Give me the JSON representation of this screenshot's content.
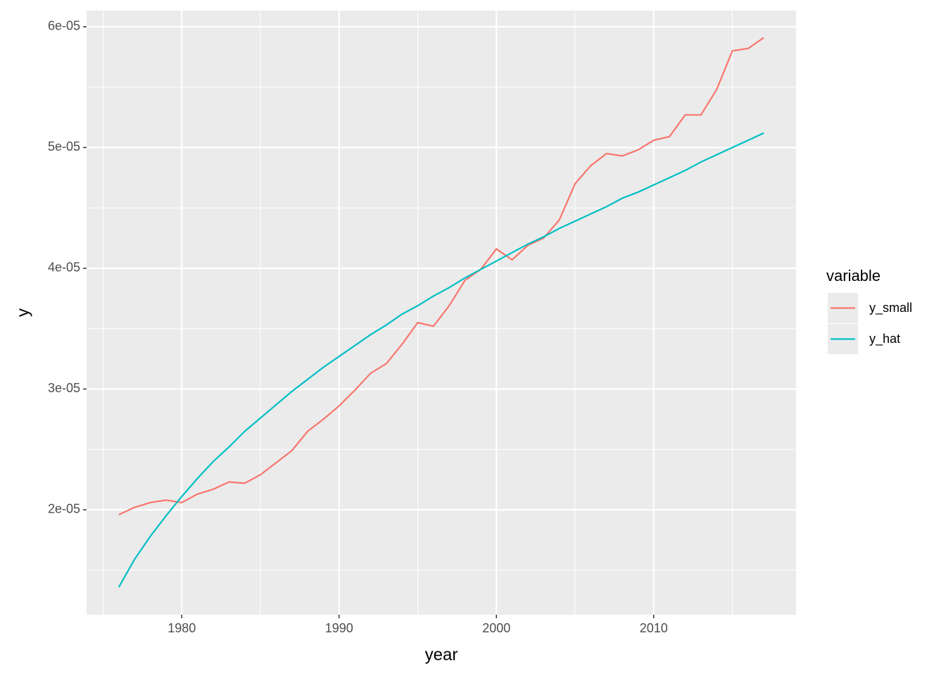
{
  "chart_data": {
    "type": "line",
    "x_label": "year",
    "y_label": "y",
    "x": [
      1976,
      1977,
      1978,
      1979,
      1980,
      1981,
      1982,
      1983,
      1984,
      1985,
      1986,
      1987,
      1988,
      1989,
      1990,
      1991,
      1992,
      1993,
      1994,
      1995,
      1996,
      1997,
      1998,
      1999,
      2000,
      2001,
      2002,
      2003,
      2004,
      2005,
      2006,
      2007,
      2008,
      2009,
      2010,
      2011,
      2012,
      2013,
      2014,
      2015,
      2016,
      2017
    ],
    "series": [
      {
        "name": "y_small",
        "color": "#F8766D",
        "values": [
          1.96e-05,
          2.02e-05,
          2.06e-05,
          2.08e-05,
          2.06e-05,
          2.13e-05,
          2.17e-05,
          2.23e-05,
          2.22e-05,
          2.29e-05,
          2.39e-05,
          2.49e-05,
          2.65e-05,
          2.75e-05,
          2.86e-05,
          2.99e-05,
          3.13e-05,
          3.21e-05,
          3.37e-05,
          3.55e-05,
          3.52e-05,
          3.69e-05,
          3.9e-05,
          3.99e-05,
          4.16e-05,
          4.07e-05,
          4.19e-05,
          4.25e-05,
          4.4e-05,
          4.7e-05,
          4.85e-05,
          4.95e-05,
          4.93e-05,
          4.98e-05,
          5.06e-05,
          5.09e-05,
          5.27e-05,
          5.27e-05,
          5.48e-05,
          5.8e-05,
          5.82e-05,
          5.91e-05
        ]
      },
      {
        "name": "y_hat",
        "color": "#00BFC4",
        "values": [
          1.36e-05,
          1.59e-05,
          1.78e-05,
          1.95e-05,
          2.11e-05,
          2.26e-05,
          2.4e-05,
          2.52e-05,
          2.65e-05,
          2.76e-05,
          2.87e-05,
          2.98e-05,
          3.08e-05,
          3.18e-05,
          3.27e-05,
          3.36e-05,
          3.45e-05,
          3.53e-05,
          3.62e-05,
          3.69e-05,
          3.77e-05,
          3.84e-05,
          3.92e-05,
          3.99e-05,
          4.06e-05,
          4.13e-05,
          4.2e-05,
          4.26e-05,
          4.33e-05,
          4.39e-05,
          4.45e-05,
          4.51e-05,
          4.58e-05,
          4.63e-05,
          4.69e-05,
          4.75e-05,
          4.81e-05,
          4.88e-05,
          4.94e-05,
          5e-05,
          5.06e-05,
          5.12e-05
        ]
      }
    ],
    "xlim": [
      1973.95,
      2019.05
    ],
    "ylim": [
      1.131e-05,
      6.134e-05
    ],
    "xticks": [
      1980,
      1990,
      2000,
      2010
    ],
    "yticks": [
      {
        "value": 2e-05,
        "label": "2e-05"
      },
      {
        "value": 3e-05,
        "label": "3e-05"
      },
      {
        "value": 4e-05,
        "label": "4e-05"
      },
      {
        "value": 5e-05,
        "label": "5e-05"
      },
      {
        "value": 6e-05,
        "label": "6e-05"
      }
    ],
    "minor_xticks": [
      1975,
      1985,
      1995,
      2005,
      2015
    ],
    "minor_yticks": [
      1.5e-05,
      2.5e-05,
      3.5e-05,
      4.5e-05,
      5.5e-05
    ],
    "grid": true,
    "legend_title": "variable",
    "legend": "right"
  }
}
